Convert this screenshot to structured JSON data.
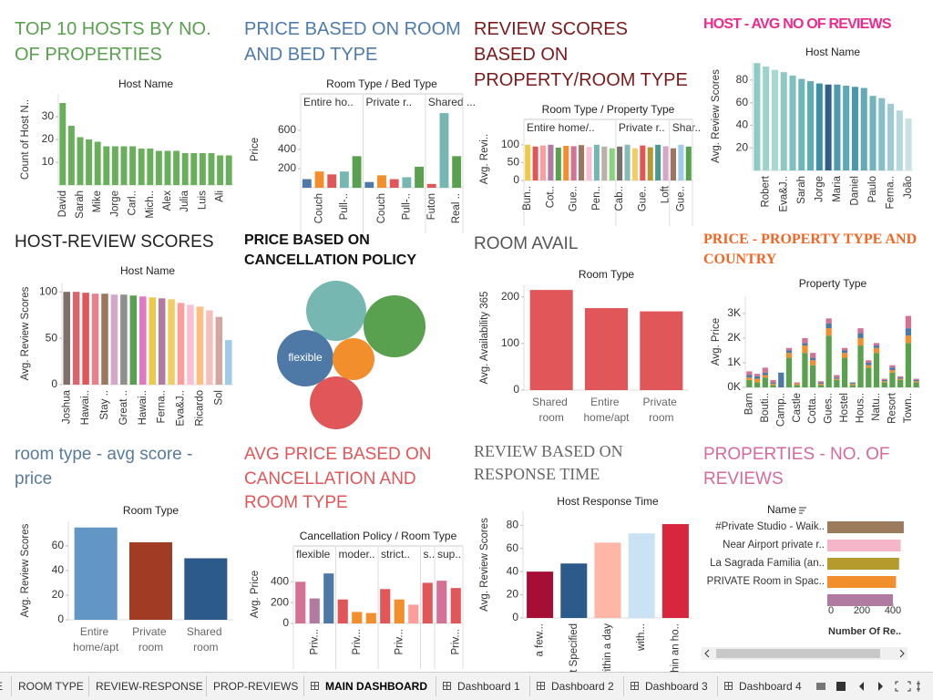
{
  "chart_data": [
    {
      "type": "bar",
      "title": "TOP 10 HOSTS BY NO. OF PROPERTIES",
      "header": "Host Name",
      "y_label": "Count of Host N..",
      "categories": [
        "David",
        null,
        "Sarah",
        null,
        "Mike",
        null,
        "Jorge",
        null,
        "Carl..",
        null,
        "Mich..",
        null,
        "Alex",
        null,
        "Julia",
        null,
        "Luis",
        null,
        "Ali",
        null
      ],
      "values": [
        36,
        26,
        21,
        20,
        19,
        17,
        17,
        17,
        17,
        16,
        16,
        15,
        15,
        15,
        14,
        14,
        14,
        14,
        13,
        13
      ],
      "color": "#6aaf5c",
      "ylim": [
        0,
        40
      ],
      "yticks": [
        10,
        20,
        30
      ]
    },
    {
      "type": "bar",
      "title": "PRICE BASED ON ROOM AND BED TYPE",
      "header": "Room Type / Bed Type",
      "y_label": "Price",
      "groups": [
        {
          "name": "Entire ho..",
          "categories": [
            null,
            "Couch",
            null,
            "Pull-..",
            null
          ],
          "values": [
            90,
            170,
            140,
            170,
            330
          ],
          "colors": [
            "#4e79a7",
            "#f28e2b",
            "#e15759",
            "#76b7b2",
            "#59a14f"
          ]
        },
        {
          "name": "Private r..",
          "categories": [
            null,
            "Couch",
            null,
            "Pull-..",
            null
          ],
          "values": [
            60,
            130,
            90,
            110,
            220
          ],
          "colors": [
            "#4e79a7",
            "#f28e2b",
            "#e15759",
            "#76b7b2",
            "#59a14f"
          ]
        },
        {
          "name": "Shared ...",
          "categories": [
            "Futon",
            null,
            "Real .."
          ],
          "values": [
            40,
            780,
            330
          ],
          "colors": [
            "#e15759",
            "#76b7b2",
            "#59a14f"
          ]
        }
      ],
      "ylim": [
        0,
        800
      ],
      "yticks": [
        200,
        400,
        600
      ]
    },
    {
      "type": "bar",
      "title": "REVIEW SCORES BASED ON PROPERTY/ROOM TYPE",
      "header": "Room Type / Property Type",
      "y_label": "Avg. Revi..",
      "groups": [
        {
          "name": "Entire home/..",
          "categories": [
            "Bun..",
            null,
            null,
            "Cot..",
            null,
            null,
            "Gue..",
            null,
            null,
            "Pen..",
            null,
            null
          ],
          "values": [
            100,
            95,
            98,
            100,
            92,
            97,
            96,
            99,
            94,
            100,
            95,
            90
          ],
          "colors": [
            "#edc948",
            "#e15759",
            "#ff9d9a",
            "#b07aa1",
            "#59a14f",
            "#f28e2b",
            "#d37295",
            "#9c755f",
            "#fabfd2",
            "#76b7b2",
            "#bab0ac",
            "#8cd17d"
          ]
        },
        {
          "name": "Private r..",
          "categories": [
            "Cab..",
            null,
            null,
            "Gue..",
            null,
            null,
            "Loft"
          ],
          "values": [
            95,
            100,
            90,
            98,
            93,
            100,
            96
          ],
          "colors": [
            "#79706e",
            "#86bcb6",
            "#f1ce63",
            "#e15759",
            "#b6992d",
            "#499894",
            "#d4a6c8"
          ]
        },
        {
          "name": "Shar..",
          "categories": [
            null,
            "Gue..",
            null
          ],
          "values": [
            90,
            100,
            95
          ],
          "colors": [
            "#9d7660",
            "#a0cbe8",
            "#59a14f"
          ]
        }
      ],
      "ylim": [
        0,
        120
      ],
      "yticks": [
        0,
        50,
        100
      ]
    },
    {
      "type": "bar",
      "title": "HOST - AVG NO OF REVIEWS",
      "header": "Host Name",
      "y_label": "Avg. Review Scores",
      "categories": [
        null,
        "Robert",
        null,
        "Eva&J..",
        null,
        "Sarah",
        null,
        "Jorge",
        null,
        "Maria",
        null,
        "Daniel",
        null,
        "Paulo",
        null,
        "Ferna..",
        null,
        "João"
      ],
      "values": [
        95,
        92,
        89,
        87,
        84,
        81,
        79,
        77,
        76,
        76,
        75,
        74,
        73,
        66,
        64,
        59,
        53,
        46
      ],
      "colors": [
        "#8ecbc6",
        "#9dd2cd",
        "#a8d8d3",
        "#8fc9c6",
        "#7ebfc0",
        "#6db6ba",
        "#5eacb4",
        "#3e8fa8",
        "#2f5f8a",
        "#4e9bb0",
        "#5fa8b6",
        "#4a98ae",
        "#63aab8",
        "#6fb4be",
        "#86c0c6",
        "#9dcbcf",
        "#b5d8da",
        "#c8e2e3"
      ],
      "ylim": [
        0,
        96
      ],
      "yticks": [
        20,
        40,
        60,
        80
      ]
    },
    {
      "type": "bar",
      "title": "HOST-REVIEW SCORES",
      "header": "Host Name",
      "y_label": "Avg. Review Scores",
      "categories": [
        "Joshua",
        null,
        "Hawai..",
        null,
        "Stay ..",
        null,
        "Great ..",
        null,
        "Hawai..",
        null,
        "Ferna..",
        null,
        "Eva&J..",
        null,
        "Ricardo",
        null,
        "Sol",
        null
      ],
      "values": [
        100,
        100,
        99,
        98,
        98,
        97,
        97,
        96,
        95,
        94,
        93,
        92,
        88,
        86,
        84,
        80,
        73,
        48
      ],
      "colors": [
        "#7f6f68",
        "#d9666f",
        "#e15759",
        "#e87f8c",
        "#9d7660",
        "#d4a6c8",
        "#8f8f8f",
        "#59a14f",
        "#e377c2",
        "#edc948",
        "#b07aa1",
        "#f1ce63",
        "#ff9d9a",
        "#fabfd2",
        "#ffbe7d",
        "#f4c0bd",
        "#d4a6a0",
        "#a0cbe8"
      ],
      "ylim": [
        0,
        110
      ],
      "yticks": [
        0,
        50,
        100
      ]
    },
    {
      "type": "bubble",
      "title": "PRICE BASED ON CANCELLATION POLICY",
      "categories": [
        null,
        null,
        "flexible",
        null,
        null
      ],
      "values": [
        109,
        116,
        96,
        53,
        84
      ],
      "colors": [
        "#76b7b2",
        "#59a14f",
        "#4e79a7",
        "#f28e2b",
        "#e15759"
      ]
    },
    {
      "type": "bar",
      "title": "ROOM AVAIL",
      "header": "Room Type",
      "y_label": "Avg. Availability 365",
      "categories": [
        "Shared room",
        "Entire home/apt",
        "Private room"
      ],
      "values": [
        215,
        176,
        169
      ],
      "color": "#e15759",
      "ylim": [
        0,
        225
      ],
      "yticks": [
        0,
        100,
        200
      ]
    },
    {
      "type": "stacked",
      "title": "PRICE - PROPERTY TYPE AND COUNTRY",
      "header": "Property Type",
      "y_label": "Avg. Price",
      "categories": [
        "Barn",
        null,
        "Bouti..",
        null,
        "Camp..",
        null,
        "Castle",
        null,
        "Cotta..",
        null,
        "Gues..",
        null,
        "Hostel",
        null,
        "Hous..",
        null,
        "Natu..",
        null,
        "Resort",
        null,
        "Town..",
        null
      ],
      "series": [
        {
          "color": "#59a14f",
          "values": [
            300,
            200,
            400,
            100,
            0,
            1200,
            100,
            1400,
            900,
            100,
            2100,
            300,
            1200,
            100,
            1700,
            800,
            1400,
            200,
            600,
            300,
            1800,
            200
          ]
        },
        {
          "color": "#f28e2b",
          "values": [
            100,
            150,
            100,
            50,
            0,
            200,
            50,
            300,
            200,
            50,
            300,
            50,
            200,
            50,
            300,
            100,
            200,
            50,
            100,
            50,
            300,
            50
          ]
        },
        {
          "color": "#4e79a7",
          "values": [
            100,
            100,
            100,
            50,
            600,
            100,
            0,
            100,
            100,
            50,
            200,
            50,
            100,
            50,
            200,
            100,
            100,
            50,
            100,
            50,
            300,
            50
          ]
        },
        {
          "color": "#d37295",
          "values": [
            150,
            100,
            200,
            100,
            0,
            100,
            50,
            200,
            200,
            50,
            200,
            100,
            100,
            0,
            200,
            100,
            100,
            50,
            100,
            50,
            500,
            50
          ]
        }
      ],
      "ylim": [
        0,
        3700
      ],
      "yticks": [
        {
          "value": 0,
          "label": "0K"
        },
        {
          "value": 1000,
          "label": "1K"
        },
        {
          "value": 2000,
          "label": "2K"
        },
        {
          "value": 3000,
          "label": "3K"
        }
      ]
    },
    {
      "type": "bar",
      "title": "room type - avg score - price",
      "header": "Room Type",
      "y_label": "Avg. Review Scores",
      "categories": [
        "Entire home/apt",
        "Private room",
        "Shared room"
      ],
      "values": [
        75,
        63,
        50
      ],
      "colors": [
        "#6296c5",
        "#a13b23",
        "#2c5a8a"
      ],
      "ylim": [
        0,
        80
      ],
      "yticks": [
        0,
        20,
        40,
        60
      ]
    },
    {
      "type": "bar",
      "title": "AVG PRICE BASED ON CANCELLATION AND ROOM TYPE",
      "header": "Cancellation Policy / Room Type",
      "y_label": "Avg. Price",
      "groups": [
        {
          "name": "flexible",
          "categories": [
            null,
            "Priv...",
            null
          ],
          "values": [
            400,
            240,
            480
          ],
          "colors": [
            "#d37295",
            "#b07aa1",
            "#4e79a7"
          ]
        },
        {
          "name": "moder..",
          "categories": [
            null,
            "Priv...",
            null
          ],
          "values": [
            230,
            110,
            100
          ],
          "colors": [
            "#e15759",
            "#f28e2b",
            "#f28e2b"
          ]
        },
        {
          "name": "strict..",
          "categories": [
            null,
            "Priv...",
            null
          ],
          "values": [
            330,
            230,
            180
          ],
          "colors": [
            "#e15759",
            "#f28e2b",
            "#ff9d9a"
          ]
        },
        {
          "name": "s..",
          "categories": [
            null
          ],
          "values": [
            390
          ],
          "colors": [
            "#e15759"
          ]
        },
        {
          "name": "sup..",
          "categories": [
            null,
            "Priv..."
          ],
          "values": [
            410,
            340
          ],
          "colors": [
            "#d37295",
            "#e15759"
          ]
        }
      ],
      "ylim": [
        0,
        560
      ],
      "yticks": [
        0,
        200,
        400
      ]
    },
    {
      "type": "bar",
      "title": "REVIEW BASED ON RESPONSE TIME",
      "header": "Host Response Time",
      "y_label": "Avg. Review Scores",
      "categories": [
        "a few...",
        "Not Specified",
        "within a day",
        "with...",
        "within an ho.."
      ],
      "values": [
        40,
        47,
        65,
        73,
        81
      ],
      "colors": [
        "#a50f35",
        "#2c5a8a",
        "#ffb6a6",
        "#c9e3f5",
        "#d7263d"
      ],
      "ylim": [
        0,
        92
      ],
      "yticks": [
        0,
        20,
        40,
        60,
        80
      ]
    },
    {
      "type": "hbar",
      "title": "PROPERTIES - NO. OF REVIEWS",
      "header": "Name",
      "x_label": "Number Of Re..",
      "categories": [
        "#Private Studio - Waik..",
        "Near Airport private r..",
        "La Sagrada Familia (an..",
        "PRIVATE Room in Spac..",
        null
      ],
      "values": [
        470,
        450,
        440,
        420,
        400
      ],
      "colors": [
        "#9c7a5c",
        "#f4b6c8",
        "#b59a2c",
        "#f28e2b",
        "#b07aa1"
      ],
      "xlim": [
        0,
        500
      ],
      "xticks": [
        0,
        200,
        400
      ]
    }
  ],
  "tabs": [
    "E",
    "ROOM TYPE",
    "REVIEW-RESPONSE",
    "PROP-REVIEWS",
    "MAIN DASHBOARD",
    "Dashboard 1",
    "Dashboard 2",
    "Dashboard 3",
    "Dashboard 4"
  ],
  "active_tab": 4
}
